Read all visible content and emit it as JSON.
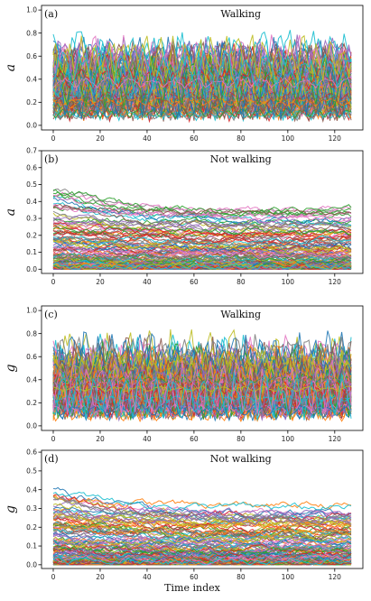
{
  "chart_data": [
    {
      "type": "line",
      "tag": "(a)",
      "title": "Walking",
      "ylabel": "a",
      "xlabel": "",
      "xlim": [
        -5,
        132
      ],
      "ylim": [
        -0.04,
        1.04
      ],
      "xticks": [
        0,
        20,
        40,
        60,
        80,
        100,
        120
      ],
      "yticks": [
        0.0,
        0.2,
        0.4,
        0.6,
        0.8,
        1.0
      ],
      "ytick_labels": [
        "0.0",
        "0.2",
        "0.4",
        "0.6",
        "0.8",
        "1.0"
      ],
      "profile": "walking",
      "n_series": 160,
      "peak": 1.0
    },
    {
      "type": "line",
      "tag": "(b)",
      "title": "Not walking",
      "ylabel": "a",
      "xlabel": "",
      "xlim": [
        -5,
        132
      ],
      "ylim": [
        -0.025,
        0.7
      ],
      "xticks": [
        0,
        20,
        40,
        60,
        80,
        100,
        120
      ],
      "yticks": [
        0.0,
        0.1,
        0.2,
        0.3,
        0.4,
        0.5,
        0.6,
        0.7
      ],
      "ytick_labels": [
        "0.0",
        "0.1",
        "0.2",
        "0.3",
        "0.4",
        "0.5",
        "0.6",
        "0.7"
      ],
      "profile": "notwalking",
      "n_series": 140,
      "peak": 0.64
    },
    {
      "type": "line",
      "tag": "(c)",
      "title": "Walking",
      "ylabel": "g",
      "xlabel": "",
      "xlim": [
        -5,
        132
      ],
      "ylim": [
        -0.04,
        1.04
      ],
      "xticks": [
        0,
        20,
        40,
        60,
        80,
        100,
        120
      ],
      "yticks": [
        0.0,
        0.2,
        0.4,
        0.6,
        0.8,
        1.0
      ],
      "ytick_labels": [
        "0.0",
        "0.2",
        "0.4",
        "0.6",
        "0.8",
        "1.0"
      ],
      "profile": "walking",
      "n_series": 160,
      "peak": 1.0
    },
    {
      "type": "line",
      "tag": "(d)",
      "title": "Not walking",
      "ylabel": "g",
      "xlabel": "Time index",
      "xlim": [
        -5,
        132
      ],
      "ylim": [
        -0.02,
        0.61
      ],
      "xticks": [
        0,
        20,
        40,
        60,
        80,
        100,
        120
      ],
      "yticks": [
        0.0,
        0.1,
        0.2,
        0.3,
        0.4,
        0.5,
        0.6
      ],
      "ytick_labels": [
        "0.0",
        "0.1",
        "0.2",
        "0.3",
        "0.4",
        "0.5",
        "0.6"
      ],
      "profile": "notwalking_g",
      "n_series": 140,
      "peak": 0.58
    }
  ],
  "colors": [
    "#1f77b4",
    "#ff7f0e",
    "#2ca02c",
    "#d62728",
    "#9467bd",
    "#8c564b",
    "#e377c2",
    "#7f7f7f",
    "#bcbd22",
    "#17becf"
  ],
  "n_points": 128
}
